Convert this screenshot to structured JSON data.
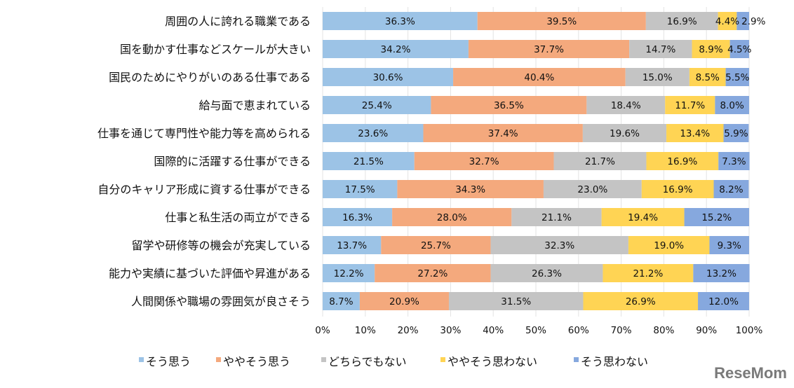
{
  "chart_data": {
    "type": "bar",
    "orientation": "horizontal",
    "stacked": true,
    "categories": [
      "周囲の人に誇れる職業である",
      "国を動かす仕事などスケールが大きい",
      "国民のためにやりがいのある仕事である",
      "給与面で恵まれている",
      "仕事を通じて専門性や能力等を高められる",
      "国際的に活躍する仕事ができる",
      "自分のキャリア形成に資する仕事ができる",
      "仕事と私生活の両立ができる",
      "留学や研修等の機会が充実している",
      "能力や実績に基づいた評価や昇進がある",
      "人間関係や職場の雰囲気が良さそう"
    ],
    "series": [
      {
        "name": "そう思う",
        "color": "#9CC3E6",
        "values": [
          36.3,
          34.2,
          30.6,
          25.4,
          23.6,
          21.5,
          17.5,
          16.3,
          13.7,
          12.2,
          8.7
        ]
      },
      {
        "name": "ややそう思う",
        "color": "#F4A97D",
        "values": [
          39.5,
          37.7,
          40.4,
          36.5,
          37.4,
          32.7,
          34.3,
          28.0,
          25.7,
          27.2,
          20.9
        ]
      },
      {
        "name": "どちらでもない",
        "color": "#C4C4C4",
        "values": [
          16.9,
          14.7,
          15.0,
          18.4,
          19.6,
          21.7,
          23.0,
          21.1,
          32.3,
          26.3,
          31.5
        ]
      },
      {
        "name": "ややそう思わない",
        "color": "#FFD454",
        "values": [
          4.4,
          8.9,
          8.5,
          11.7,
          13.4,
          16.9,
          16.9,
          19.4,
          19.0,
          21.2,
          26.9
        ]
      },
      {
        "name": "そう思わない",
        "color": "#86A8DE",
        "values": [
          2.9,
          4.5,
          5.5,
          8.0,
          5.9,
          7.3,
          8.2,
          15.2,
          9.3,
          13.2,
          12.0
        ]
      }
    ],
    "xlim": [
      0,
      100
    ],
    "xticks": [
      "0%",
      "10%",
      "20%",
      "30%",
      "40%",
      "50%",
      "60%",
      "70%",
      "80%",
      "90%",
      "100%"
    ],
    "grid": true,
    "legend": "bottom",
    "value_suffix": "%"
  },
  "watermark": "ReseMom"
}
